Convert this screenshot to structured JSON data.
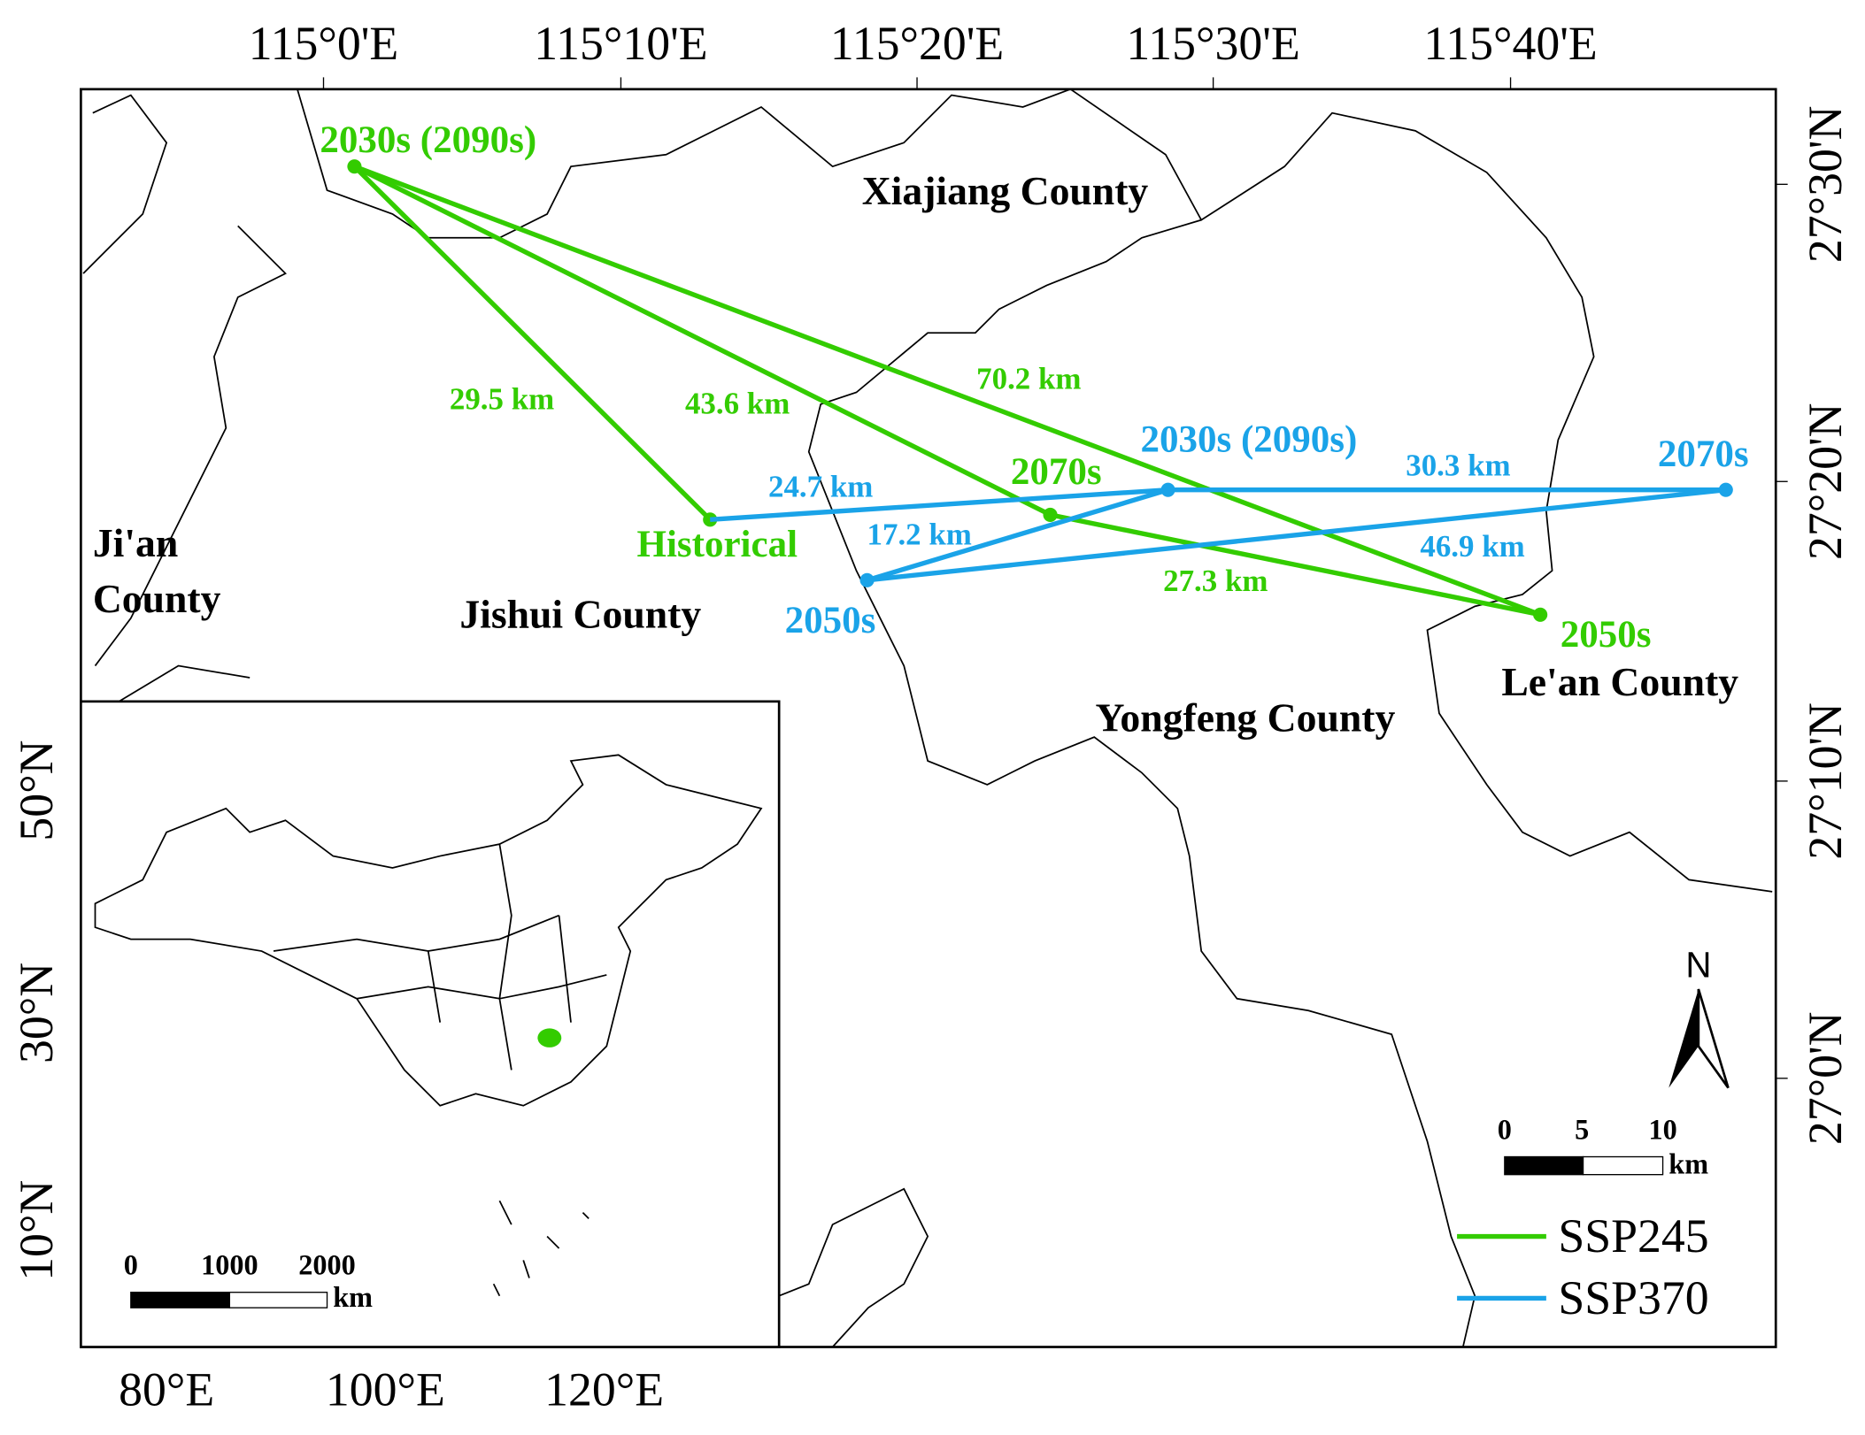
{
  "map": {
    "top_ticks": [
      "115°0'E",
      "115°10'E",
      "115°20'E",
      "115°30'E",
      "115°40'E"
    ],
    "right_ticks": [
      "27°30'N",
      "27°20'N",
      "27°10'N",
      "27°0'N"
    ],
    "counties": [
      {
        "lines": [
          "Xiajiang County"
        ]
      },
      {
        "lines": [
          "Ji'an",
          "County"
        ]
      },
      {
        "lines": [
          "Jishui County"
        ]
      },
      {
        "lines": [
          "Yongfeng County"
        ]
      },
      {
        "lines": [
          "Le'an County"
        ]
      }
    ],
    "ssp245": {
      "name": "SSP245",
      "color": "#33cc00",
      "points": [
        "2030s (2090s)",
        "Historical",
        "2070s",
        "2050s"
      ],
      "distances": [
        "29.5 km",
        "43.6 km",
        "70.2 km",
        "27.3 km"
      ]
    },
    "ssp370": {
      "name": "SSP370",
      "color": "#1aa3e8",
      "points": [
        "2030s (2090s)",
        "2070s",
        "2050s"
      ],
      "distances": [
        "24.7 km",
        "30.3 km",
        "17.2 km",
        "46.9 km"
      ]
    },
    "north": "N",
    "scale_bar": {
      "ticks": [
        "0",
        "5",
        "10"
      ],
      "unit": "km"
    },
    "inset": {
      "x_ticks": [
        "80°E",
        "100°E",
        "120°E"
      ],
      "y_ticks": [
        "50°N",
        "30°N",
        "10°N"
      ],
      "scale_bar": {
        "ticks": [
          "0",
          "1000",
          "2000"
        ],
        "unit": "km"
      }
    }
  }
}
